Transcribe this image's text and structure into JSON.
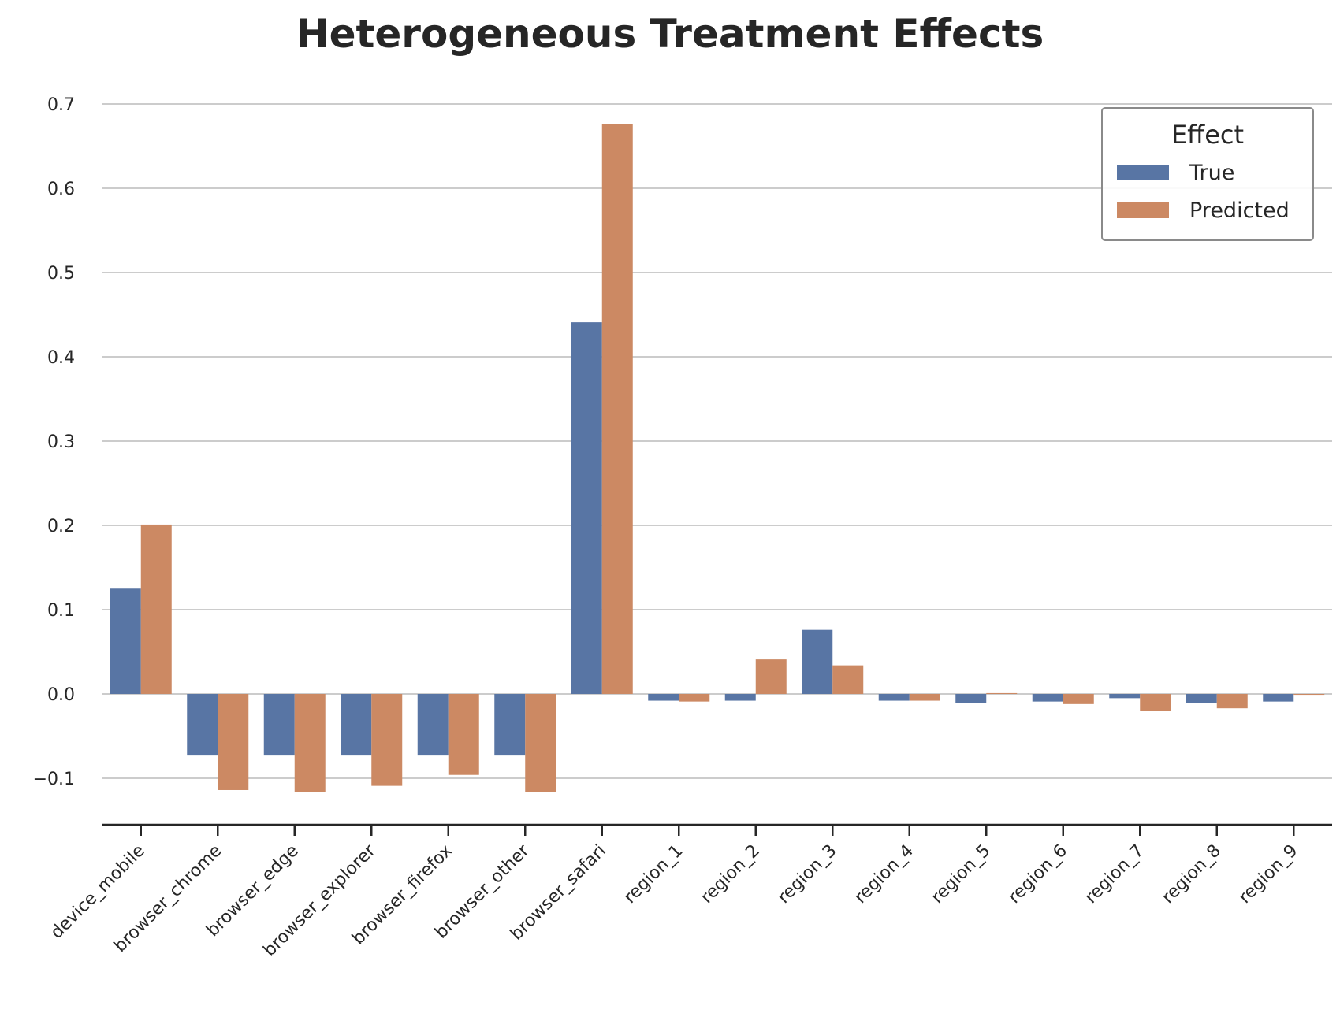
{
  "chart_data": {
    "type": "bar",
    "title": "Heterogeneous Treatment Effects",
    "xlabel": "",
    "ylabel": "",
    "categories": [
      "device_mobile",
      "browser_chrome",
      "browser_edge",
      "browser_explorer",
      "browser_firefox",
      "browser_other",
      "browser_safari",
      "region_1",
      "region_2",
      "region_3",
      "region_4",
      "region_5",
      "region_6",
      "region_7",
      "region_8",
      "region_9"
    ],
    "series": [
      {
        "name": "True",
        "color": "#5875a4",
        "values": [
          0.125,
          -0.073,
          -0.073,
          -0.073,
          -0.073,
          -0.073,
          0.441,
          -0.008,
          -0.008,
          0.076,
          -0.008,
          -0.011,
          -0.009,
          -0.005,
          -0.011,
          -0.009
        ]
      },
      {
        "name": "Predicted",
        "color": "#cc8963",
        "values": [
          0.201,
          -0.114,
          -0.116,
          -0.109,
          -0.096,
          -0.116,
          0.676,
          -0.009,
          0.041,
          0.034,
          -0.008,
          0.001,
          -0.012,
          -0.02,
          -0.017,
          -0.001
        ]
      }
    ],
    "ylim": [
      -0.155,
      0.7
    ],
    "yticks": [
      "−0.1",
      "0.0",
      "0.1",
      "0.2",
      "0.3",
      "0.4",
      "0.5",
      "0.6",
      "0.7"
    ],
    "ytick_values": [
      -0.1,
      0.0,
      0.1,
      0.2,
      0.3,
      0.4,
      0.5,
      0.6,
      0.7
    ],
    "grid": "horizontal",
    "legend": {
      "title": "Effect",
      "placement": "top-right"
    }
  }
}
